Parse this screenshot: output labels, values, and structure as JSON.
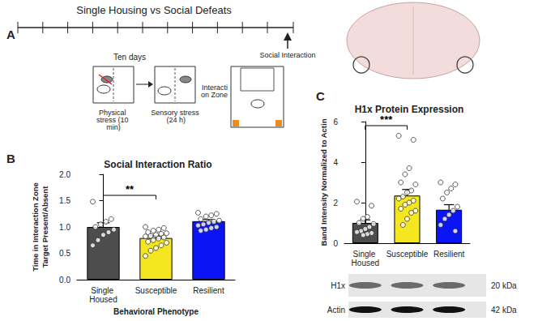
{
  "chart_data": [
    {
      "type": "bar",
      "title": "Social Interaction Ratio",
      "xlabel": "Behavioral Phenotype",
      "ylabel": "Time in Interaction Zone\nTarget Present/Absent",
      "categories": [
        "Single Housed",
        "Susceptible",
        "Resilient"
      ],
      "values": [
        1.0,
        0.79,
        1.11
      ],
      "errors": [
        0.08,
        0.04,
        0.03
      ],
      "colors": [
        "#4d4d4d",
        "#f5e71f",
        "#0a14f5"
      ],
      "points": [
        [
          1.48,
          1.15,
          1.1,
          1.05,
          1.0,
          0.95,
          0.9,
          0.85,
          0.75,
          0.65
        ],
        [
          1.0,
          0.98,
          0.95,
          0.93,
          0.9,
          0.88,
          0.87,
          0.85,
          0.83,
          0.82,
          0.8,
          0.78,
          0.75,
          0.72,
          0.7,
          0.65,
          0.6,
          0.55,
          0.45
        ],
        [
          1.27,
          1.25,
          1.22,
          1.2,
          1.15,
          1.12,
          1.1,
          1.08,
          1.05,
          1.03,
          1.0,
          0.98,
          0.95,
          0.93
        ]
      ],
      "annotations": [
        {
          "text": "**",
          "from": "Single Housed",
          "to": "Susceptible",
          "y": 1.6
        }
      ],
      "ylim": [
        0,
        2
      ],
      "yticks": [
        {
          "value": 0,
          "label": "0.0"
        },
        {
          "value": 0.5,
          "label": "0.5"
        },
        {
          "value": 1,
          "label": "1.0"
        },
        {
          "value": 1.5,
          "label": "1.5"
        },
        {
          "value": 2,
          "label": "2.0"
        }
      ],
      "grid": false
    },
    {
      "type": "bar",
      "title": "H1x Protein Expression",
      "ylabel": "Band Intensity Normalized to Actin",
      "categories": [
        "Single Housed",
        "Susceptible",
        "Resilient"
      ],
      "values": [
        1.0,
        2.35,
        1.65
      ],
      "errors": [
        0.15,
        0.3,
        0.25
      ],
      "colors": [
        "#4d4d4d",
        "#f5e71f",
        "#0a14f5"
      ],
      "points": [
        [
          2.05,
          1.85,
          1.3,
          1.2,
          1.0,
          0.95,
          0.8,
          0.7,
          0.6,
          0.55,
          0.5,
          0.45,
          0.4
        ],
        [
          5.3,
          5.1,
          3.7,
          3.4,
          3.0,
          2.9,
          2.6,
          2.5,
          2.3,
          2.2,
          2.1,
          2.0,
          1.9,
          1.7,
          1.6,
          1.5,
          1.2,
          0.9
        ],
        [
          3.0,
          2.9,
          2.7,
          2.5,
          2.2,
          1.8,
          1.6,
          1.4,
          1.2,
          0.9,
          0.6
        ]
      ],
      "annotations": [
        {
          "text": "***",
          "from": "Single Housed",
          "to": "Susceptible",
          "y": 5.8
        }
      ],
      "ylim": [
        0,
        6
      ],
      "yticks": [
        0,
        2,
        4,
        6
      ],
      "grid": false
    }
  ],
  "panel_labels": [
    "A",
    "B",
    "C"
  ],
  "panel_a": {
    "title": "Single Housing vs Social Defeats",
    "days": 10,
    "duration": "Ten days",
    "steps": [
      "Physical stress (10 min)",
      "Sensory stress (24 h)"
    ],
    "test": "Social Interaction",
    "zone": "Interaction Zone"
  },
  "blot": {
    "bands": [
      {
        "label": "H1x",
        "size": "20 kDa"
      },
      {
        "label": "Actin",
        "size": "42 kDa"
      }
    ]
  }
}
